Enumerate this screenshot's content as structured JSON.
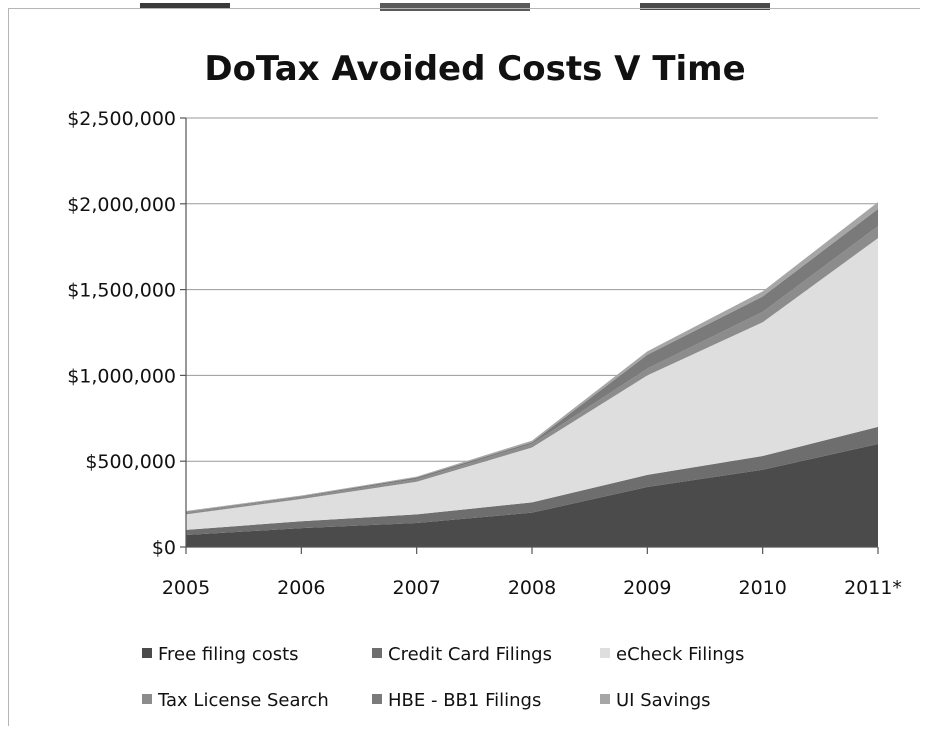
{
  "chart_data": {
    "type": "area",
    "stacked": true,
    "title": "DoTax Avoided Costs V Time",
    "xlabel": "",
    "ylabel": "",
    "categories": [
      "2005",
      "2006",
      "2007",
      "2008",
      "2009",
      "2010",
      "2011*"
    ],
    "ylim": [
      0,
      2500000
    ],
    "yticks": [
      0,
      500000,
      1000000,
      1500000,
      2000000,
      2500000
    ],
    "ytick_labels": [
      "$0",
      "$500,000",
      "$1,000,000",
      "$1,500,000",
      "$2,000,000",
      "$2,500,000"
    ],
    "grid": true,
    "legend_position": "bottom",
    "series": [
      {
        "name": "Free filing costs",
        "color": "#4b4b4b",
        "values": [
          70000,
          110000,
          140000,
          200000,
          350000,
          450000,
          600000
        ]
      },
      {
        "name": "Credit Card Filings",
        "color": "#6e6e6e",
        "values": [
          30000,
          40000,
          50000,
          60000,
          70000,
          80000,
          100000
        ]
      },
      {
        "name": "eCheck Filings",
        "color": "#dedede",
        "values": [
          90000,
          130000,
          190000,
          320000,
          580000,
          780000,
          1100000
        ]
      },
      {
        "name": "Tax License Search",
        "color": "#8c8c8c",
        "values": [
          10000,
          10000,
          15000,
          20000,
          40000,
          60000,
          70000
        ]
      },
      {
        "name": "HBE - BB1 Filings",
        "color": "#7a7a7a",
        "values": [
          5000,
          5000,
          10000,
          10000,
          80000,
          90000,
          100000
        ]
      },
      {
        "name": "UI Savings",
        "color": "#a6a6a6",
        "values": [
          5000,
          5000,
          5000,
          10000,
          20000,
          30000,
          40000
        ]
      }
    ]
  }
}
